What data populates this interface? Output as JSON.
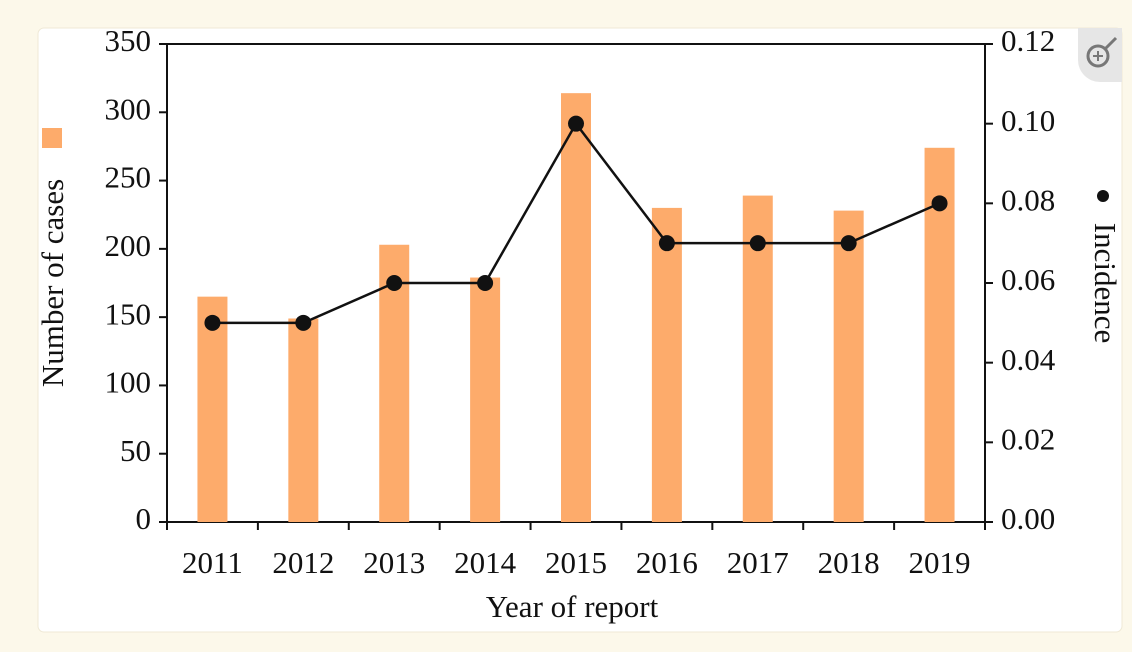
{
  "chart_data": {
    "type": "bar_line",
    "x_label": "Year of report",
    "y_label": "Number of cases",
    "y2_label": "Incidence",
    "categories": [
      "2011",
      "2012",
      "2013",
      "2014",
      "2015",
      "2016",
      "2017",
      "2018",
      "2019"
    ],
    "series": [
      {
        "type": "bar",
        "color": "#fdab6b",
        "values": [
          165,
          149,
          203,
          179,
          314,
          230,
          239,
          228,
          274
        ]
      },
      {
        "type": "line",
        "axis": "y2",
        "color": "#111111",
        "values": [
          0.05,
          0.05,
          0.06,
          0.06,
          0.1,
          0.07,
          0.07,
          0.07,
          0.08
        ]
      }
    ],
    "ylim": [
      0,
      350
    ],
    "yticks": [
      0,
      50,
      100,
      150,
      200,
      250,
      300,
      350
    ],
    "y2lim": [
      0,
      0.12
    ],
    "y2ticks": [
      {
        "value": 0,
        "label": "0.00"
      },
      {
        "value": 0.02,
        "label": "0.02"
      },
      {
        "value": 0.04,
        "label": "0.04"
      },
      {
        "value": 0.06,
        "label": "0.06"
      },
      {
        "value": 0.08,
        "label": "0.08"
      },
      {
        "value": 0.1,
        "label": "0.10"
      },
      {
        "value": 0.12,
        "label": "0.12"
      }
    ]
  }
}
